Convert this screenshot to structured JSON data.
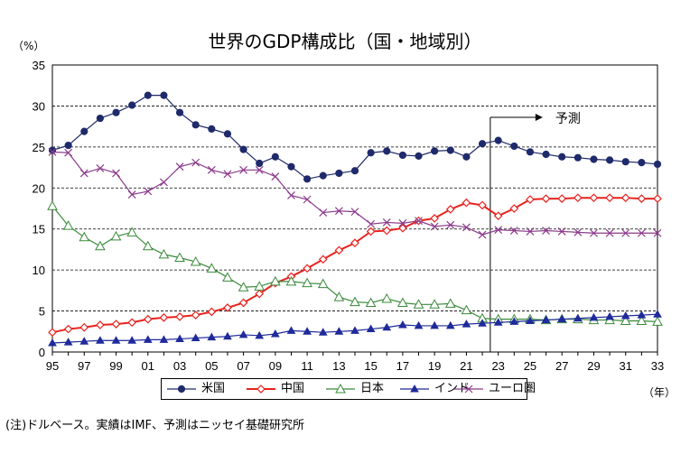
{
  "chart_data": {
    "type": "line",
    "title": "世界のGDP構成比（国・地域別）",
    "yunit": "（%）",
    "xunit": "（年）",
    "note": "(注)ドルベース。実績はIMF、予測はニッセイ基礎研究所",
    "forecast_label": "予測",
    "forecast_start": 23,
    "ylim": [
      0,
      35
    ],
    "yticks": [
      0,
      5,
      10,
      15,
      20,
      25,
      30,
      35
    ],
    "x": [
      "95",
      "96",
      "97",
      "98",
      "99",
      "00",
      "01",
      "02",
      "03",
      "04",
      "05",
      "06",
      "07",
      "08",
      "09",
      "10",
      "11",
      "12",
      "13",
      "14",
      "15",
      "16",
      "17",
      "18",
      "19",
      "20",
      "21",
      "22",
      "23",
      "24",
      "25",
      "26",
      "27",
      "28",
      "29",
      "30",
      "31",
      "32",
      "33"
    ],
    "xtick_labels": [
      "95",
      "97",
      "99",
      "01",
      "03",
      "05",
      "07",
      "09",
      "11",
      "13",
      "15",
      "17",
      "19",
      "21",
      "23",
      "25",
      "27",
      "29",
      "31",
      "33"
    ],
    "series": [
      {
        "name": "米国",
        "color": "#1f2a6b",
        "marker": "circle-filled",
        "values": [
          24.6,
          25.2,
          26.9,
          28.5,
          29.2,
          30.1,
          31.3,
          31.3,
          29.2,
          27.7,
          27.2,
          26.6,
          24.7,
          23.0,
          23.8,
          22.6,
          21.1,
          21.5,
          21.8,
          22.1,
          24.3,
          24.5,
          24.0,
          23.9,
          24.5,
          24.6,
          23.8,
          25.4,
          25.8,
          25.1,
          24.4,
          24.1,
          23.8,
          23.7,
          23.5,
          23.4,
          23.2,
          23.1,
          22.9
        ]
      },
      {
        "name": "中国",
        "color": "#e8231f",
        "marker": "diamond-open",
        "values": [
          2.4,
          2.8,
          3.0,
          3.3,
          3.4,
          3.6,
          4.0,
          4.2,
          4.3,
          4.5,
          4.9,
          5.4,
          6.0,
          7.1,
          8.4,
          9.2,
          10.2,
          11.3,
          12.4,
          13.3,
          14.7,
          14.8,
          15.1,
          16.0,
          16.3,
          17.4,
          18.2,
          17.9,
          16.6,
          17.5,
          18.6,
          18.7,
          18.7,
          18.8,
          18.8,
          18.8,
          18.8,
          18.7,
          18.7
        ]
      },
      {
        "name": "日本",
        "color": "#3a8a3a",
        "marker": "triangle-open",
        "values": [
          17.8,
          15.4,
          14.0,
          12.9,
          14.1,
          14.6,
          12.9,
          11.9,
          11.5,
          11.0,
          10.2,
          9.1,
          7.9,
          8.0,
          8.6,
          8.6,
          8.4,
          8.3,
          6.7,
          6.1,
          6.0,
          6.5,
          6.0,
          5.8,
          5.8,
          5.9,
          5.1,
          4.1,
          4.0,
          4.0,
          4.0,
          3.9,
          4.0,
          4.0,
          3.9,
          3.9,
          3.8,
          3.8,
          3.7
        ]
      },
      {
        "name": "インド",
        "color": "#1f2a9b",
        "marker": "triangle-filled",
        "values": [
          1.1,
          1.2,
          1.3,
          1.4,
          1.4,
          1.4,
          1.5,
          1.5,
          1.6,
          1.7,
          1.8,
          1.9,
          2.1,
          2.0,
          2.2,
          2.6,
          2.5,
          2.4,
          2.5,
          2.6,
          2.8,
          3.0,
          3.3,
          3.2,
          3.2,
          3.2,
          3.4,
          3.5,
          3.6,
          3.7,
          3.8,
          3.9,
          4.0,
          4.1,
          4.2,
          4.3,
          4.4,
          4.5,
          4.6
        ]
      },
      {
        "name": "ユーロ圏",
        "color": "#8b3a8b",
        "marker": "x",
        "values": [
          24.4,
          24.3,
          21.8,
          22.4,
          21.8,
          19.2,
          19.6,
          20.7,
          22.6,
          23.1,
          22.2,
          21.7,
          22.2,
          22.2,
          21.4,
          19.1,
          18.6,
          17.0,
          17.2,
          17.1,
          15.6,
          15.8,
          15.7,
          16.0,
          15.3,
          15.5,
          15.2,
          14.3,
          14.9,
          14.8,
          14.7,
          14.8,
          14.7,
          14.6,
          14.5,
          14.5,
          14.5,
          14.5,
          14.5
        ]
      }
    ],
    "grid": "horizontal-dashed",
    "legend_position": "bottom"
  }
}
